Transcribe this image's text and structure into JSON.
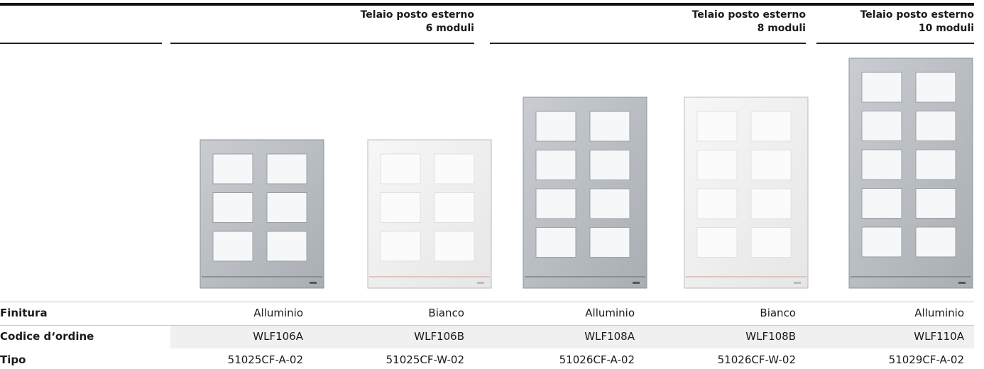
{
  "header": {
    "groups": [
      {
        "lines": [
          "Telaio posto esterno",
          "6 moduli"
        ]
      },
      {
        "lines": [
          "Telaio posto esterno",
          "8 moduli"
        ]
      },
      {
        "lines": [
          "Telaio posto esterno",
          "10 moduli"
        ]
      }
    ]
  },
  "table": {
    "rows": [
      {
        "label": "Finitura",
        "cells": [
          "Alluminio",
          "Bianco",
          "Alluminio",
          "Bianco",
          "Alluminio"
        ]
      },
      {
        "label": "Codice d‘ordine",
        "cells": [
          "WLF106A",
          "WLF106B",
          "WLF108A",
          "WLF108B",
          "WLF110A"
        ]
      },
      {
        "label": "Tipo",
        "cells": [
          "51025CF-A-02",
          "51025CF-W-02",
          "51026CF-A-02",
          "51026CF-W-02",
          "51029CF-A-02"
        ]
      }
    ]
  }
}
